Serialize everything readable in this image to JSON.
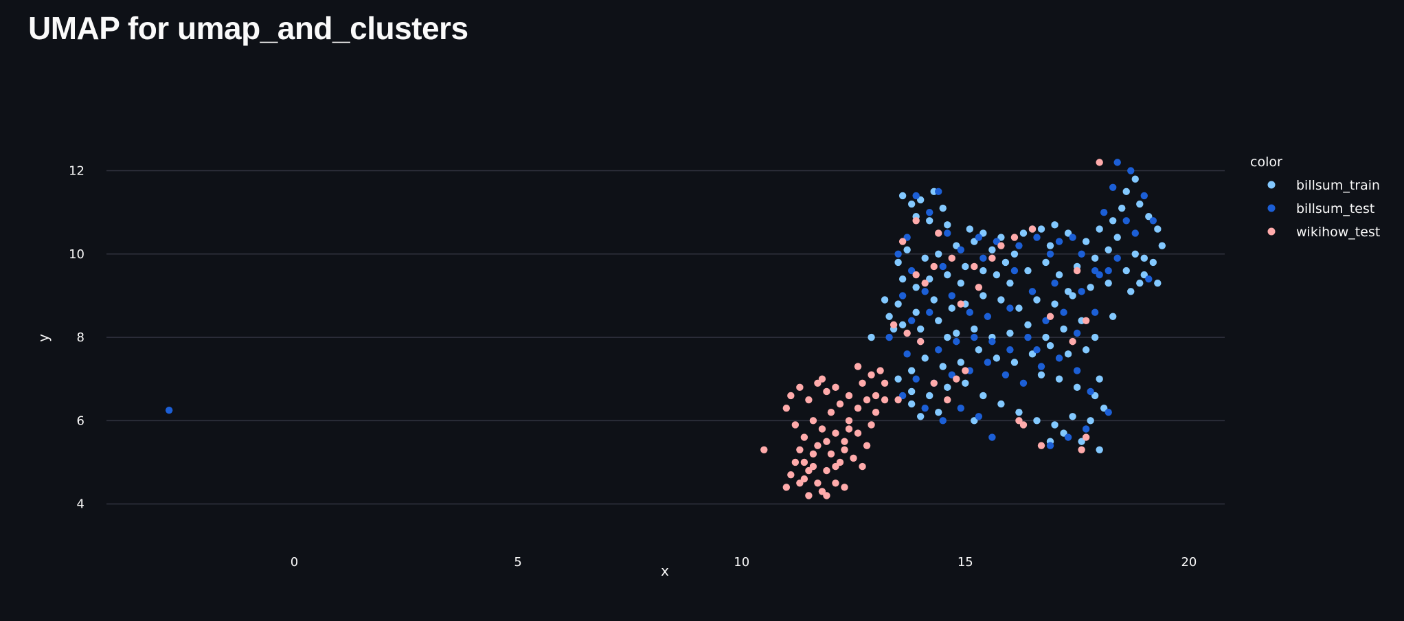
{
  "page": {
    "title": "UMAP for umap_and_clusters"
  },
  "chart_data": {
    "type": "scatter",
    "title": "",
    "xlabel": "x",
    "ylabel": "y",
    "xlim": [
      -4.2,
      20.8
    ],
    "ylim": [
      3.4,
      12.8
    ],
    "x_ticks": [
      0,
      5,
      10,
      15,
      20
    ],
    "y_ticks": [
      4,
      6,
      8,
      10,
      12
    ],
    "grid": "horizontal",
    "legend": {
      "title": "color",
      "position": "right"
    },
    "series": [
      {
        "name": "billsum_train",
        "color": "#83c9ff",
        "points": [
          [
            13.6,
            11.4
          ],
          [
            13.8,
            11.2
          ],
          [
            14.0,
            11.3
          ],
          [
            14.3,
            11.5
          ],
          [
            14.5,
            11.1
          ],
          [
            14.2,
            10.8
          ],
          [
            13.9,
            10.9
          ],
          [
            14.6,
            10.7
          ],
          [
            15.1,
            10.6
          ],
          [
            15.4,
            10.5
          ],
          [
            15.8,
            10.4
          ],
          [
            16.3,
            10.5
          ],
          [
            16.7,
            10.6
          ],
          [
            17.0,
            10.7
          ],
          [
            17.3,
            10.5
          ],
          [
            16.9,
            10.2
          ],
          [
            16.1,
            10.0
          ],
          [
            15.6,
            10.1
          ],
          [
            15.2,
            10.3
          ],
          [
            14.8,
            10.2
          ],
          [
            14.4,
            10.0
          ],
          [
            14.1,
            9.9
          ],
          [
            13.7,
            10.1
          ],
          [
            13.5,
            9.8
          ],
          [
            13.6,
            9.4
          ],
          [
            13.9,
            9.2
          ],
          [
            14.2,
            9.4
          ],
          [
            14.6,
            9.5
          ],
          [
            15.0,
            9.7
          ],
          [
            15.4,
            9.6
          ],
          [
            15.7,
            9.5
          ],
          [
            16.0,
            9.3
          ],
          [
            16.4,
            9.6
          ],
          [
            16.8,
            9.8
          ],
          [
            17.1,
            9.5
          ],
          [
            17.5,
            9.7
          ],
          [
            17.9,
            9.9
          ],
          [
            18.2,
            10.1
          ],
          [
            18.4,
            10.4
          ],
          [
            18.3,
            10.8
          ],
          [
            18.5,
            11.1
          ],
          [
            18.6,
            11.5
          ],
          [
            18.8,
            11.8
          ],
          [
            18.9,
            11.2
          ],
          [
            19.1,
            10.9
          ],
          [
            19.3,
            10.6
          ],
          [
            19.4,
            10.2
          ],
          [
            19.2,
            9.8
          ],
          [
            19.0,
            9.5
          ],
          [
            19.3,
            9.3
          ],
          [
            18.9,
            9.3
          ],
          [
            18.6,
            9.6
          ],
          [
            18.2,
            9.3
          ],
          [
            17.8,
            9.2
          ],
          [
            17.4,
            9.0
          ],
          [
            17.0,
            8.8
          ],
          [
            16.6,
            8.9
          ],
          [
            16.2,
            8.7
          ],
          [
            15.8,
            8.9
          ],
          [
            15.4,
            9.0
          ],
          [
            15.0,
            8.8
          ],
          [
            14.7,
            8.7
          ],
          [
            14.3,
            8.9
          ],
          [
            13.9,
            8.6
          ],
          [
            13.5,
            8.8
          ],
          [
            13.3,
            8.5
          ],
          [
            13.6,
            8.3
          ],
          [
            14.0,
            8.2
          ],
          [
            14.4,
            8.4
          ],
          [
            14.8,
            8.1
          ],
          [
            15.2,
            8.2
          ],
          [
            15.6,
            8.0
          ],
          [
            16.0,
            8.1
          ],
          [
            16.4,
            8.3
          ],
          [
            16.8,
            8.0
          ],
          [
            17.2,
            8.2
          ],
          [
            17.6,
            8.4
          ],
          [
            17.9,
            8.0
          ],
          [
            17.7,
            7.7
          ],
          [
            17.3,
            7.6
          ],
          [
            16.9,
            7.8
          ],
          [
            16.5,
            7.6
          ],
          [
            16.1,
            7.4
          ],
          [
            15.7,
            7.5
          ],
          [
            15.3,
            7.7
          ],
          [
            14.9,
            7.4
          ],
          [
            14.5,
            7.3
          ],
          [
            14.1,
            7.5
          ],
          [
            13.8,
            7.2
          ],
          [
            13.5,
            7.0
          ],
          [
            13.8,
            6.7
          ],
          [
            14.2,
            6.6
          ],
          [
            14.6,
            6.8
          ],
          [
            15.0,
            6.9
          ],
          [
            15.4,
            6.6
          ],
          [
            15.8,
            6.4
          ],
          [
            16.2,
            6.2
          ],
          [
            16.6,
            6.0
          ],
          [
            17.0,
            5.9
          ],
          [
            17.4,
            6.1
          ],
          [
            17.8,
            6.0
          ],
          [
            18.1,
            6.3
          ],
          [
            17.9,
            6.6
          ],
          [
            17.5,
            6.8
          ],
          [
            17.1,
            7.0
          ],
          [
            16.7,
            7.1
          ],
          [
            14.4,
            6.2
          ],
          [
            14.0,
            6.1
          ],
          [
            13.8,
            6.4
          ],
          [
            15.2,
            6.0
          ],
          [
            17.2,
            5.7
          ],
          [
            17.6,
            5.5
          ],
          [
            18.0,
            5.3
          ],
          [
            16.9,
            5.5
          ],
          [
            18.0,
            7.0
          ],
          [
            18.3,
            8.5
          ],
          [
            18.7,
            9.1
          ],
          [
            17.7,
            10.3
          ],
          [
            18.0,
            10.6
          ],
          [
            16.5,
            10.6
          ],
          [
            14.9,
            9.3
          ],
          [
            14.6,
            8.0
          ],
          [
            13.4,
            8.2
          ],
          [
            15.9,
            9.8
          ],
          [
            17.3,
            9.1
          ],
          [
            18.8,
            10.0
          ],
          [
            19.0,
            9.9
          ],
          [
            12.9,
            8.0
          ],
          [
            13.2,
            8.9
          ]
        ]
      },
      {
        "name": "billsum_test",
        "color": "#1c5fd6",
        "points": [
          [
            -2.8,
            6.25
          ],
          [
            13.9,
            11.4
          ],
          [
            14.4,
            11.5
          ],
          [
            14.2,
            11.0
          ],
          [
            13.7,
            10.4
          ],
          [
            13.5,
            10.0
          ],
          [
            13.8,
            9.6
          ],
          [
            14.1,
            9.1
          ],
          [
            14.5,
            9.7
          ],
          [
            14.9,
            10.1
          ],
          [
            15.3,
            10.4
          ],
          [
            15.7,
            10.3
          ],
          [
            16.2,
            10.2
          ],
          [
            16.6,
            10.4
          ],
          [
            17.1,
            10.3
          ],
          [
            17.6,
            10.0
          ],
          [
            17.9,
            9.6
          ],
          [
            18.1,
            11.0
          ],
          [
            18.3,
            11.6
          ],
          [
            18.4,
            12.2
          ],
          [
            18.7,
            12.0
          ],
          [
            19.0,
            11.4
          ],
          [
            19.2,
            10.8
          ],
          [
            18.8,
            10.5
          ],
          [
            18.4,
            9.9
          ],
          [
            18.0,
            9.5
          ],
          [
            17.6,
            9.1
          ],
          [
            17.2,
            8.6
          ],
          [
            16.8,
            8.4
          ],
          [
            16.4,
            8.0
          ],
          [
            16.0,
            7.7
          ],
          [
            15.6,
            7.9
          ],
          [
            15.2,
            8.0
          ],
          [
            14.8,
            7.9
          ],
          [
            14.4,
            7.7
          ],
          [
            14.0,
            7.9
          ],
          [
            13.7,
            7.6
          ],
          [
            13.9,
            7.0
          ],
          [
            14.3,
            6.9
          ],
          [
            14.7,
            7.1
          ],
          [
            15.1,
            7.2
          ],
          [
            15.5,
            7.4
          ],
          [
            15.9,
            7.1
          ],
          [
            16.3,
            6.9
          ],
          [
            16.7,
            7.3
          ],
          [
            17.1,
            7.5
          ],
          [
            17.5,
            7.2
          ],
          [
            17.8,
            6.7
          ],
          [
            18.2,
            6.2
          ],
          [
            17.7,
            5.8
          ],
          [
            17.3,
            5.6
          ],
          [
            16.9,
            5.4
          ],
          [
            15.6,
            5.6
          ],
          [
            15.3,
            6.1
          ],
          [
            14.9,
            6.3
          ],
          [
            14.5,
            6.0
          ],
          [
            14.1,
            6.3
          ],
          [
            13.6,
            6.6
          ],
          [
            15.1,
            8.6
          ],
          [
            15.5,
            8.5
          ],
          [
            16.0,
            8.7
          ],
          [
            16.5,
            9.1
          ],
          [
            17.0,
            9.3
          ],
          [
            14.7,
            9.0
          ],
          [
            14.2,
            8.6
          ],
          [
            13.8,
            8.4
          ],
          [
            16.1,
            9.6
          ],
          [
            16.9,
            10.0
          ],
          [
            17.4,
            10.4
          ],
          [
            18.6,
            10.8
          ],
          [
            18.2,
            9.6
          ],
          [
            19.1,
            9.4
          ],
          [
            17.9,
            8.6
          ],
          [
            17.5,
            8.1
          ],
          [
            16.6,
            7.7
          ],
          [
            14.6,
            10.5
          ],
          [
            15.4,
            9.9
          ],
          [
            13.3,
            8.0
          ],
          [
            13.6,
            9.0
          ]
        ]
      },
      {
        "name": "wikihow_test",
        "color": "#ffabab",
        "points": [
          [
            10.5,
            5.3
          ],
          [
            11.0,
            4.4
          ],
          [
            11.1,
            4.7
          ],
          [
            11.2,
            5.0
          ],
          [
            11.3,
            5.3
          ],
          [
            11.4,
            4.6
          ],
          [
            11.5,
            4.2
          ],
          [
            11.6,
            4.9
          ],
          [
            11.7,
            5.4
          ],
          [
            11.8,
            4.3
          ],
          [
            11.9,
            4.8
          ],
          [
            12.0,
            5.2
          ],
          [
            12.1,
            4.5
          ],
          [
            12.2,
            5.0
          ],
          [
            12.3,
            4.4
          ],
          [
            11.4,
            5.6
          ],
          [
            11.2,
            5.9
          ],
          [
            11.6,
            6.0
          ],
          [
            11.8,
            5.8
          ],
          [
            12.0,
            6.2
          ],
          [
            12.2,
            6.4
          ],
          [
            12.4,
            6.0
          ],
          [
            12.6,
            5.7
          ],
          [
            12.8,
            5.4
          ],
          [
            12.5,
            5.1
          ],
          [
            12.7,
            4.9
          ],
          [
            11.1,
            6.6
          ],
          [
            11.3,
            6.8
          ],
          [
            11.5,
            6.5
          ],
          [
            11.7,
            6.9
          ],
          [
            11.9,
            6.7
          ],
          [
            12.1,
            6.8
          ],
          [
            12.4,
            6.6
          ],
          [
            12.6,
            6.3
          ],
          [
            12.8,
            6.5
          ],
          [
            13.0,
            6.6
          ],
          [
            13.2,
            6.5
          ],
          [
            13.0,
            6.2
          ],
          [
            12.9,
            5.9
          ],
          [
            12.3,
            5.5
          ],
          [
            12.1,
            5.7
          ],
          [
            11.9,
            5.5
          ],
          [
            11.6,
            5.2
          ],
          [
            11.4,
            5.0
          ],
          [
            11.3,
            4.5
          ],
          [
            11.5,
            4.8
          ],
          [
            11.7,
            4.5
          ],
          [
            11.9,
            4.2
          ],
          [
            12.1,
            4.9
          ],
          [
            12.3,
            5.3
          ],
          [
            12.7,
            6.9
          ],
          [
            12.9,
            7.1
          ],
          [
            13.1,
            7.2
          ],
          [
            12.6,
            7.3
          ],
          [
            13.4,
            8.3
          ],
          [
            13.7,
            8.1
          ],
          [
            14.0,
            7.9
          ],
          [
            13.9,
            9.5
          ],
          [
            14.3,
            9.7
          ],
          [
            14.7,
            9.9
          ],
          [
            15.2,
            9.7
          ],
          [
            15.6,
            9.9
          ],
          [
            15.8,
            10.2
          ],
          [
            16.1,
            10.4
          ],
          [
            16.5,
            10.6
          ],
          [
            17.5,
            9.6
          ],
          [
            17.7,
            8.4
          ],
          [
            17.4,
            7.9
          ],
          [
            16.9,
            8.5
          ],
          [
            15.3,
            9.2
          ],
          [
            14.9,
            8.8
          ],
          [
            14.1,
            9.3
          ],
          [
            13.6,
            10.3
          ],
          [
            13.9,
            10.8
          ],
          [
            14.4,
            10.5
          ],
          [
            14.8,
            7.0
          ],
          [
            14.3,
            6.9
          ],
          [
            14.6,
            6.5
          ],
          [
            16.2,
            6.0
          ],
          [
            16.7,
            5.4
          ],
          [
            17.6,
            5.3
          ],
          [
            17.7,
            5.6
          ],
          [
            18.0,
            12.2
          ],
          [
            16.3,
            5.9
          ],
          [
            13.5,
            6.5
          ],
          [
            12.4,
            5.8
          ],
          [
            11.0,
            6.3
          ],
          [
            11.8,
            7.0
          ],
          [
            13.2,
            6.9
          ],
          [
            15.0,
            7.2
          ]
        ]
      }
    ]
  }
}
